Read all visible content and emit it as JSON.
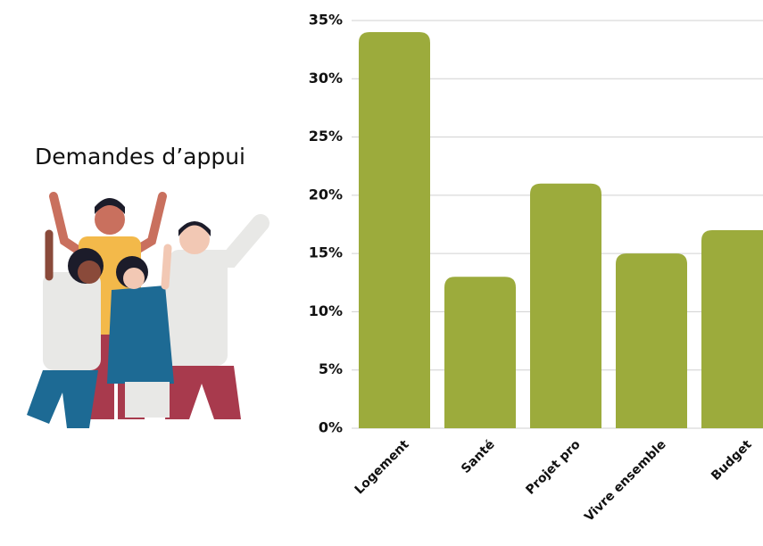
{
  "chart_data": {
    "type": "bar",
    "title": "Demandes d’appui",
    "categories": [
      "Logement",
      "Santé",
      "Projet pro",
      "Vivre ensemble",
      "Budget"
    ],
    "values": [
      34,
      13,
      21,
      15,
      17
    ],
    "color": "#9cab3c",
    "ylim": [
      0,
      35
    ],
    "yticks": [
      {
        "value": 0,
        "label": "0%"
      },
      {
        "value": 5,
        "label": "5%"
      },
      {
        "value": 10,
        "label": "10%"
      },
      {
        "value": 15,
        "label": "15%"
      },
      {
        "value": 20,
        "label": "20%"
      },
      {
        "value": 25,
        "label": "25%"
      },
      {
        "value": 30,
        "label": "30%"
      },
      {
        "value": 35,
        "label": "35%"
      }
    ],
    "grid": true
  }
}
